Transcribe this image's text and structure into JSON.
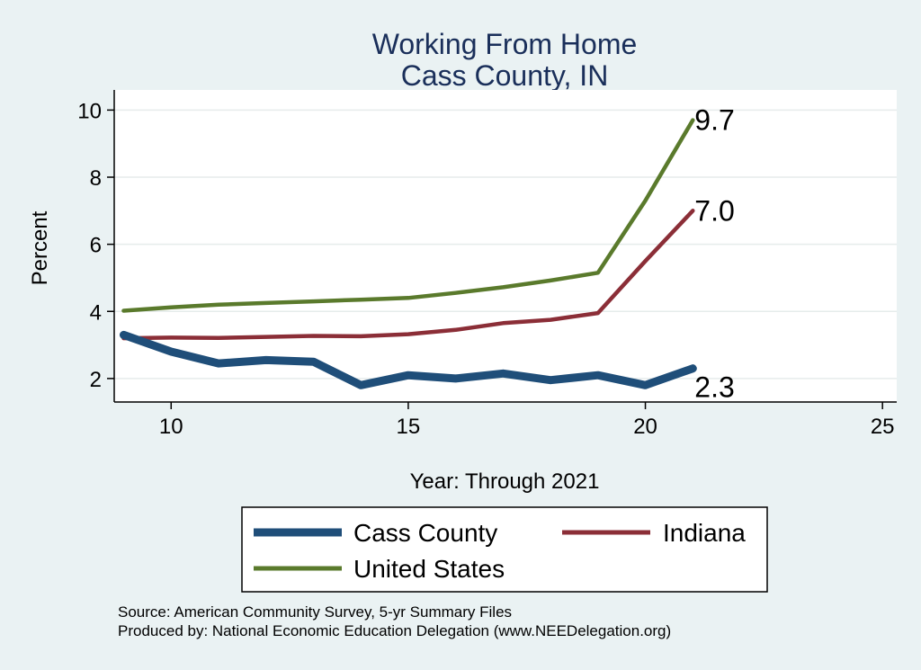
{
  "chart_data": {
    "type": "line",
    "title": "Working From Home",
    "subtitle": "Cass County, IN",
    "xlabel": "Year: Through 2021",
    "ylabel": "Percent",
    "xlim": [
      8.8,
      25.3
    ],
    "ylim": [
      1.3,
      10.6
    ],
    "xticks": [
      10,
      15,
      20,
      25
    ],
    "yticks": [
      2,
      4,
      6,
      8,
      10
    ],
    "grid": true,
    "legend_position": "bottom",
    "series": [
      {
        "name": "Cass County",
        "color": "#1f4e79",
        "width": "thick",
        "x": [
          9,
          10,
          11,
          12,
          13,
          14,
          15,
          16,
          17,
          18,
          19,
          20,
          21
        ],
        "y": [
          3.3,
          2.8,
          2.45,
          2.55,
          2.5,
          1.8,
          2.1,
          2.0,
          2.15,
          1.95,
          2.1,
          1.8,
          2.3
        ],
        "end_label": "2.3"
      },
      {
        "name": "Indiana",
        "color": "#8b2e37",
        "width": "medium",
        "x": [
          9,
          10,
          11,
          12,
          13,
          14,
          15,
          16,
          17,
          18,
          19,
          20,
          21
        ],
        "y": [
          3.2,
          3.22,
          3.21,
          3.24,
          3.27,
          3.26,
          3.32,
          3.45,
          3.65,
          3.75,
          3.95,
          5.5,
          7.0
        ],
        "end_label": "7.0"
      },
      {
        "name": "United States",
        "color": "#5a7a2c",
        "width": "medium",
        "x": [
          9,
          10,
          11,
          12,
          13,
          14,
          15,
          16,
          17,
          18,
          19,
          20,
          21
        ],
        "y": [
          4.02,
          4.12,
          4.2,
          4.25,
          4.3,
          4.35,
          4.4,
          4.55,
          4.72,
          4.92,
          5.15,
          7.3,
          9.7
        ],
        "end_label": "9.7"
      }
    ]
  },
  "notes": {
    "source": "Source: American Community Survey, 5-yr Summary Files",
    "produced": "Produced by: National Economic Education Delegation (www.NEEDelegation.org)"
  }
}
